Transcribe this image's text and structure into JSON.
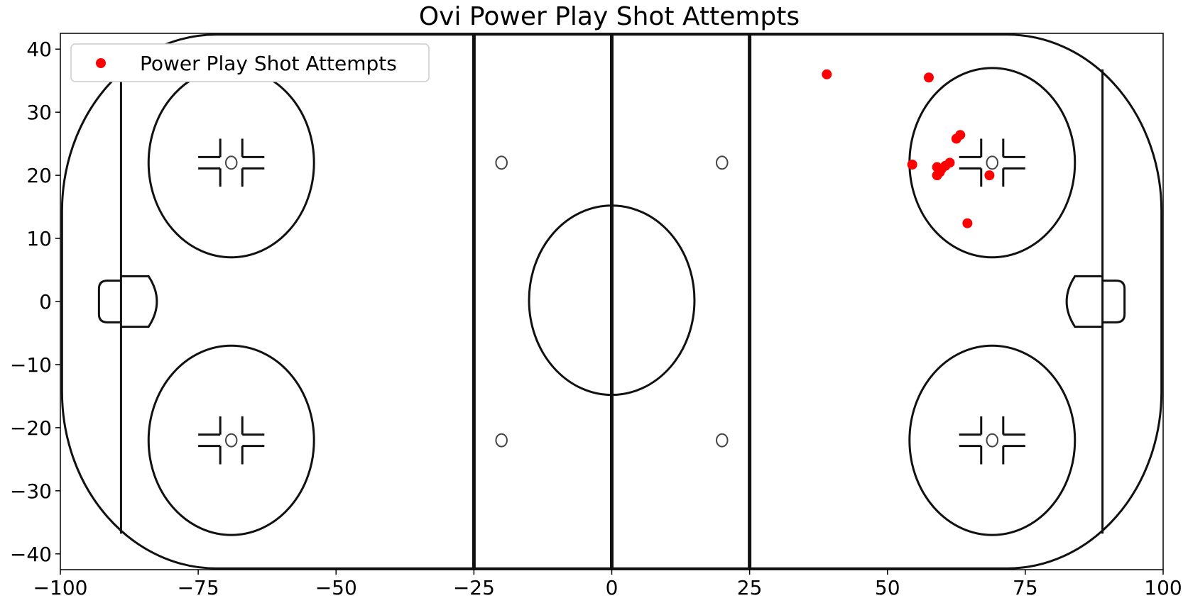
{
  "chart_data": {
    "type": "scatter",
    "title": "Ovi Power Play Shot Attempts",
    "xlabel": "",
    "ylabel": "",
    "xlim": [
      -100,
      100
    ],
    "ylim": [
      -42.5,
      42.5
    ],
    "x_ticks": [
      -100,
      -75,
      -50,
      -25,
      0,
      25,
      50,
      75,
      100
    ],
    "y_ticks": [
      -40,
      -30,
      -20,
      -10,
      0,
      10,
      20,
      30,
      40
    ],
    "x_tick_labels": [
      "−100",
      "−75",
      "−50",
      "−25",
      "0",
      "25",
      "50",
      "75",
      "100"
    ],
    "y_tick_labels": [
      "−40",
      "−30",
      "−20",
      "−10",
      "0",
      "10",
      "20",
      "30",
      "40"
    ],
    "grid": false,
    "legend_position": "top-left",
    "background": "NHL hockey rink diagram",
    "series": [
      {
        "name": "Power Play Shot Attempts",
        "color": "#ff0000",
        "points": [
          {
            "x": 39,
            "y": 36
          },
          {
            "x": 57.5,
            "y": 35.5
          },
          {
            "x": 54.5,
            "y": 21.7
          },
          {
            "x": 62.5,
            "y": 25.8
          },
          {
            "x": 63.2,
            "y": 26.4
          },
          {
            "x": 59,
            "y": 21.3
          },
          {
            "x": 59.8,
            "y": 21
          },
          {
            "x": 60.5,
            "y": 21.5
          },
          {
            "x": 61.3,
            "y": 22
          },
          {
            "x": 59,
            "y": 20
          },
          {
            "x": 59.5,
            "y": 20.5
          },
          {
            "x": 68.5,
            "y": 20
          },
          {
            "x": 64.5,
            "y": 12.4
          }
        ]
      }
    ]
  }
}
